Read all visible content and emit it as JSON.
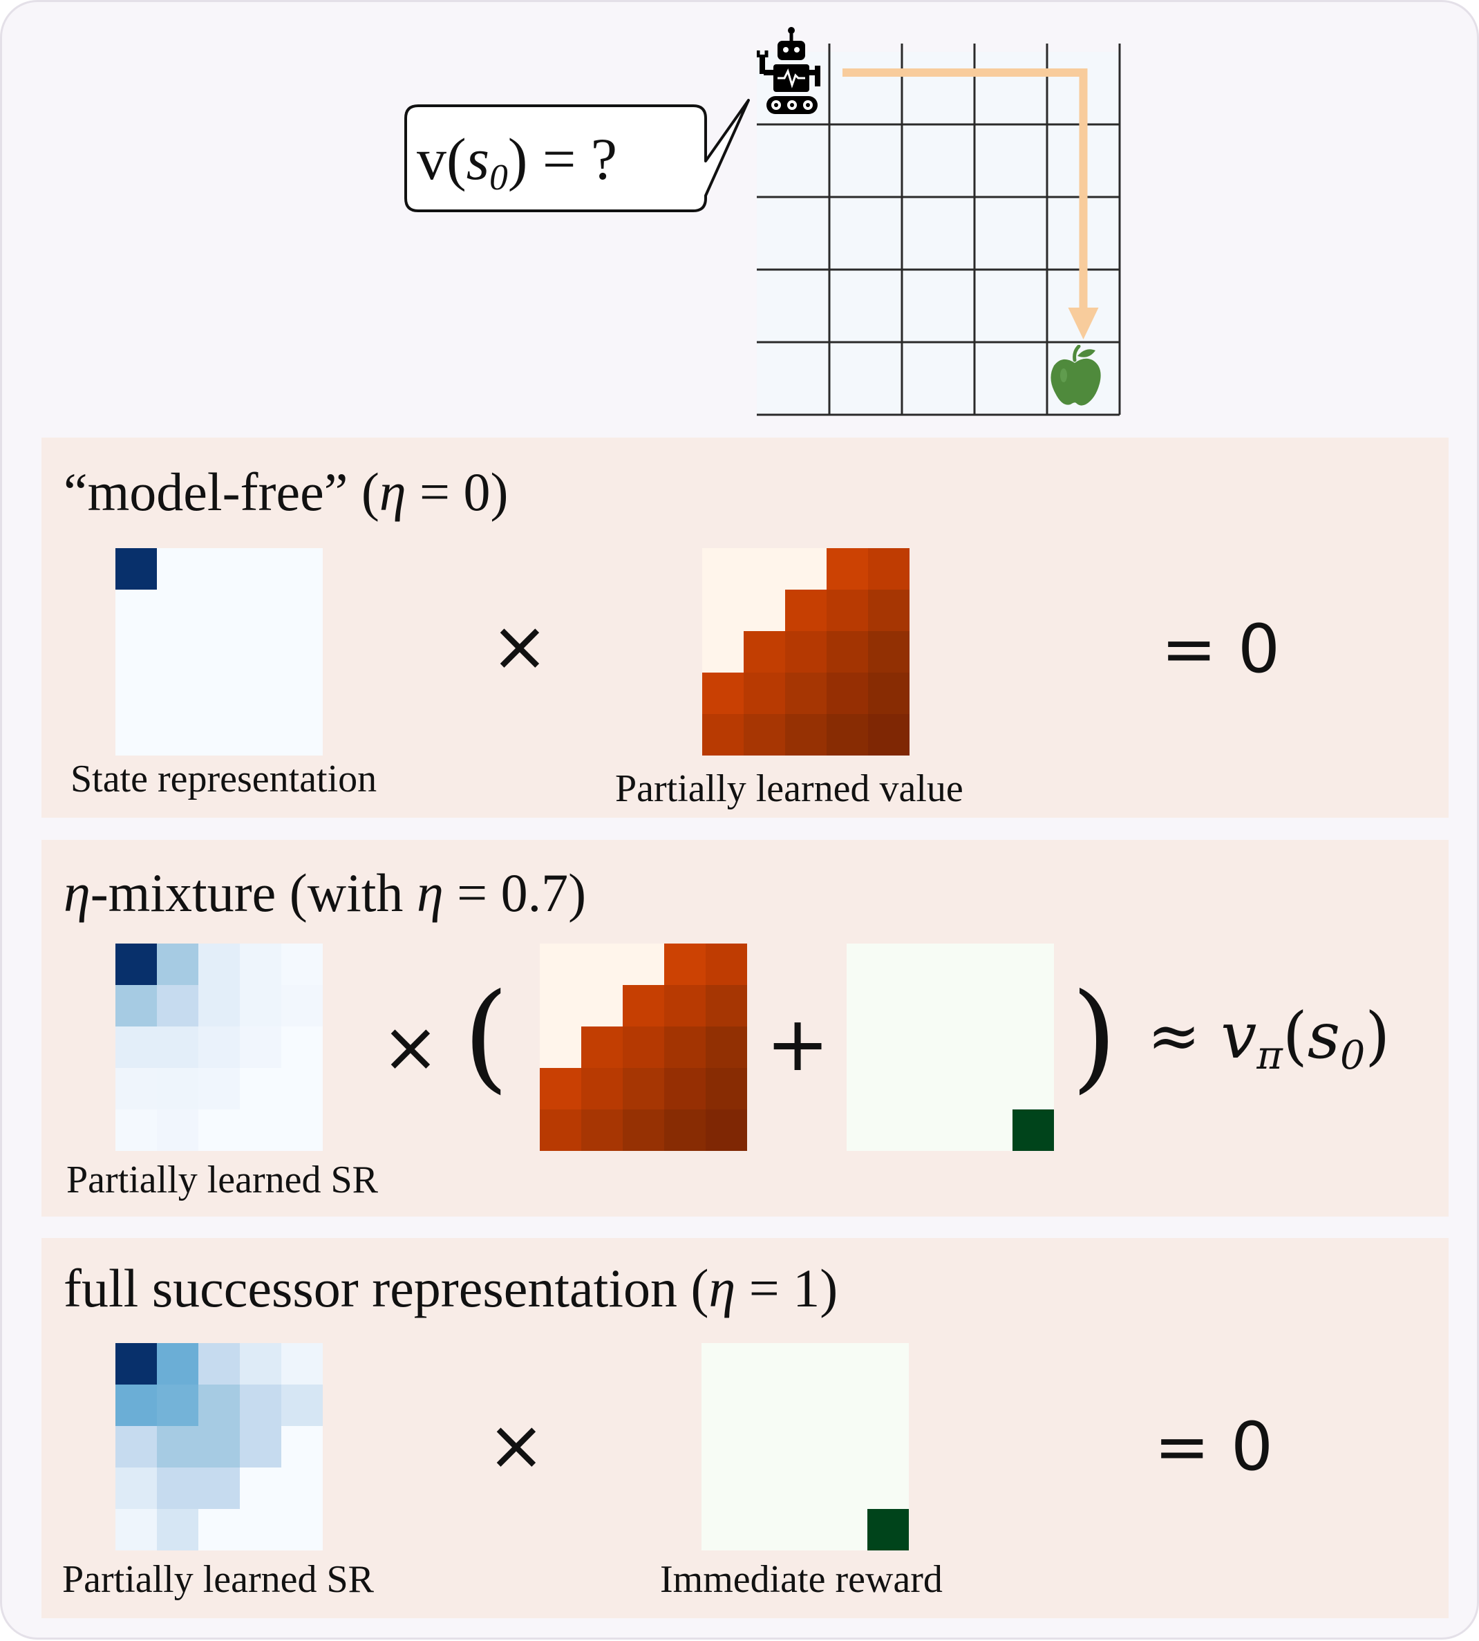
{
  "top": {
    "speech_bubble": "v(s₀) = ?",
    "speech_bubble_parts": {
      "v": "v",
      "open": "(",
      "s": "s",
      "sub": "0",
      "close": ")",
      "rest": " = ?"
    },
    "agent_icon": "robot-icon",
    "goal_icon": "apple-icon",
    "gridworld": {
      "rows": 5,
      "cols": 5,
      "cell_color": "#f4f8fc",
      "line_color": "#2a2a2a",
      "path_color": "#f8cc9c",
      "apple_color": "#4f8a3c"
    }
  },
  "panels": [
    {
      "id": "model-free",
      "title_parts": {
        "pre": "“model-free” (",
        "eta": "η",
        "post": " = 0)"
      },
      "left_label": "State representation",
      "mid_label": "Partially learned value",
      "operator": "×",
      "result": "= 0"
    },
    {
      "id": "eta-mixture",
      "title_parts": {
        "eta": "η",
        "pre": "-mixture (with ",
        "eta2": "η",
        "post": " = 0.7)"
      },
      "left_label": "Partially learned SR",
      "operator": "×",
      "paren_open": "(",
      "plus": "+",
      "paren_close": ")",
      "result_parts": {
        "approx": "≈ ",
        "v": "v",
        "sub": "π",
        "open": "(",
        "s": "s",
        "sub2": "0",
        "close": ")"
      }
    },
    {
      "id": "full-sr",
      "title_parts": {
        "pre": "full successor representation (",
        "eta": "η",
        "post": " = 1)"
      },
      "left_label": "Partially learned SR",
      "mid_label": "Immediate reward",
      "operator": "×",
      "result": "= 0"
    }
  ],
  "matrices": {
    "state_representation": [
      [
        "#08306b",
        "#f7fbff",
        "#f7fbff",
        "#f7fbff",
        "#f7fbff"
      ],
      [
        "#f7fbff",
        "#f7fbff",
        "#f7fbff",
        "#f7fbff",
        "#f7fbff"
      ],
      [
        "#f7fbff",
        "#f7fbff",
        "#f7fbff",
        "#f7fbff",
        "#f7fbff"
      ],
      [
        "#f7fbff",
        "#f7fbff",
        "#f7fbff",
        "#f7fbff",
        "#f7fbff"
      ],
      [
        "#f7fbff",
        "#f7fbff",
        "#f7fbff",
        "#f7fbff",
        "#f7fbff"
      ]
    ],
    "partially_learned_value": [
      [
        "#fff5eb",
        "#fff5eb",
        "#fff5eb",
        "#cc4203",
        "#bf3c02"
      ],
      [
        "#fff5eb",
        "#fff5eb",
        "#c63f02",
        "#b83a02",
        "#a63603"
      ],
      [
        "#fff5eb",
        "#c23e02",
        "#b53902",
        "#a33402",
        "#923003"
      ],
      [
        "#c94003",
        "#b83a02",
        "#a63603",
        "#962f03",
        "#882c03"
      ],
      [
        "#b83a02",
        "#a73603",
        "#963103",
        "#882c03",
        "#7f2704"
      ]
    ],
    "mixture_sr": [
      [
        "#08306b",
        "#a6cbe3",
        "#e3eef9",
        "#eef5fc",
        "#f4f9fe"
      ],
      [
        "#a6cbe3",
        "#c6dbef",
        "#e3eef9",
        "#eef5fc",
        "#f2f7fd"
      ],
      [
        "#e3eef9",
        "#e3eef9",
        "#eaf2fb",
        "#f1f6fd",
        "#f7fbff"
      ],
      [
        "#eff5fc",
        "#eef5fc",
        "#f0f6fd",
        "#f7fbff",
        "#f7fbff"
      ],
      [
        "#f4f9fe",
        "#f1f6fd",
        "#f7fbff",
        "#f7fbff",
        "#f7fbff"
      ]
    ],
    "full_sr": [
      [
        "#08306b",
        "#6baed6",
        "#c6dbef",
        "#deebf7",
        "#eef5fc"
      ],
      [
        "#6baed6",
        "#74b3d8",
        "#a6cbe3",
        "#c6dbef",
        "#d6e6f4"
      ],
      [
        "#c6dbef",
        "#a6cbe3",
        "#a6cbe3",
        "#c6dbef",
        "#f7fbff"
      ],
      [
        "#deebf7",
        "#c6dbef",
        "#c6dbef",
        "#f7fbff",
        "#f7fbff"
      ],
      [
        "#eef5fc",
        "#d6e6f4",
        "#f7fbff",
        "#f7fbff",
        "#f7fbff"
      ]
    ],
    "immediate_reward": [
      [
        "#f7fcf5",
        "#f7fcf5",
        "#f7fcf5",
        "#f7fcf5",
        "#f7fcf5"
      ],
      [
        "#f7fcf5",
        "#f7fcf5",
        "#f7fcf5",
        "#f7fcf5",
        "#f7fcf5"
      ],
      [
        "#f7fcf5",
        "#f7fcf5",
        "#f7fcf5",
        "#f7fcf5",
        "#f7fcf5"
      ],
      [
        "#f7fcf5",
        "#f7fcf5",
        "#f7fcf5",
        "#f7fcf5",
        "#f7fcf5"
      ],
      [
        "#f7fcf5",
        "#f7fcf5",
        "#f7fcf5",
        "#f7fcf5",
        "#00441b"
      ]
    ]
  }
}
